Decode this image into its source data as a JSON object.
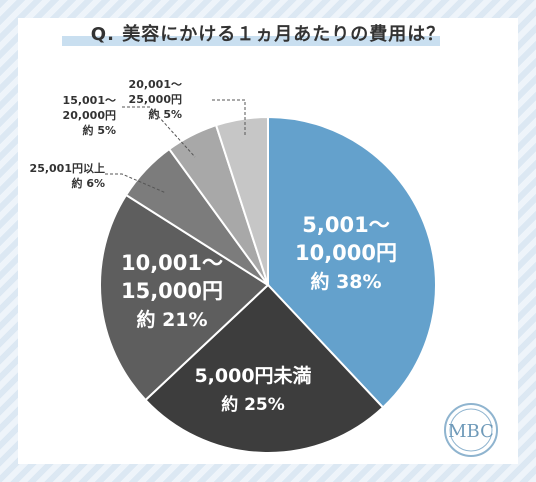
{
  "chart_data": {
    "type": "pie",
    "title": "Q. 美容にかける１ヵ月あたりの費用は？",
    "slices": [
      {
        "label_lines": [
          "5,001～",
          "10,000円",
          "約 38%"
        ],
        "value": 38,
        "color": "#64a1cc"
      },
      {
        "label_lines": [
          "5,000円未満",
          "約 25%"
        ],
        "value": 25,
        "color": "#3d3d3d"
      },
      {
        "label_lines": [
          "10,001～",
          "15,000円",
          "約 21%"
        ],
        "value": 21,
        "color": "#5e5e5e"
      },
      {
        "label_lines": [
          "25,001円以上",
          "約 6%"
        ],
        "value": 6,
        "color": "#7c7c7c"
      },
      {
        "label_lines": [
          "15,001～",
          "20,000円",
          "約 5%"
        ],
        "value": 5,
        "color": "#a8a8a8"
      },
      {
        "label_lines": [
          "20,001～",
          "25,000円",
          "約 5%"
        ],
        "value": 5,
        "color": "#c6c6c6"
      }
    ]
  },
  "logo": {
    "text": "MBC"
  }
}
